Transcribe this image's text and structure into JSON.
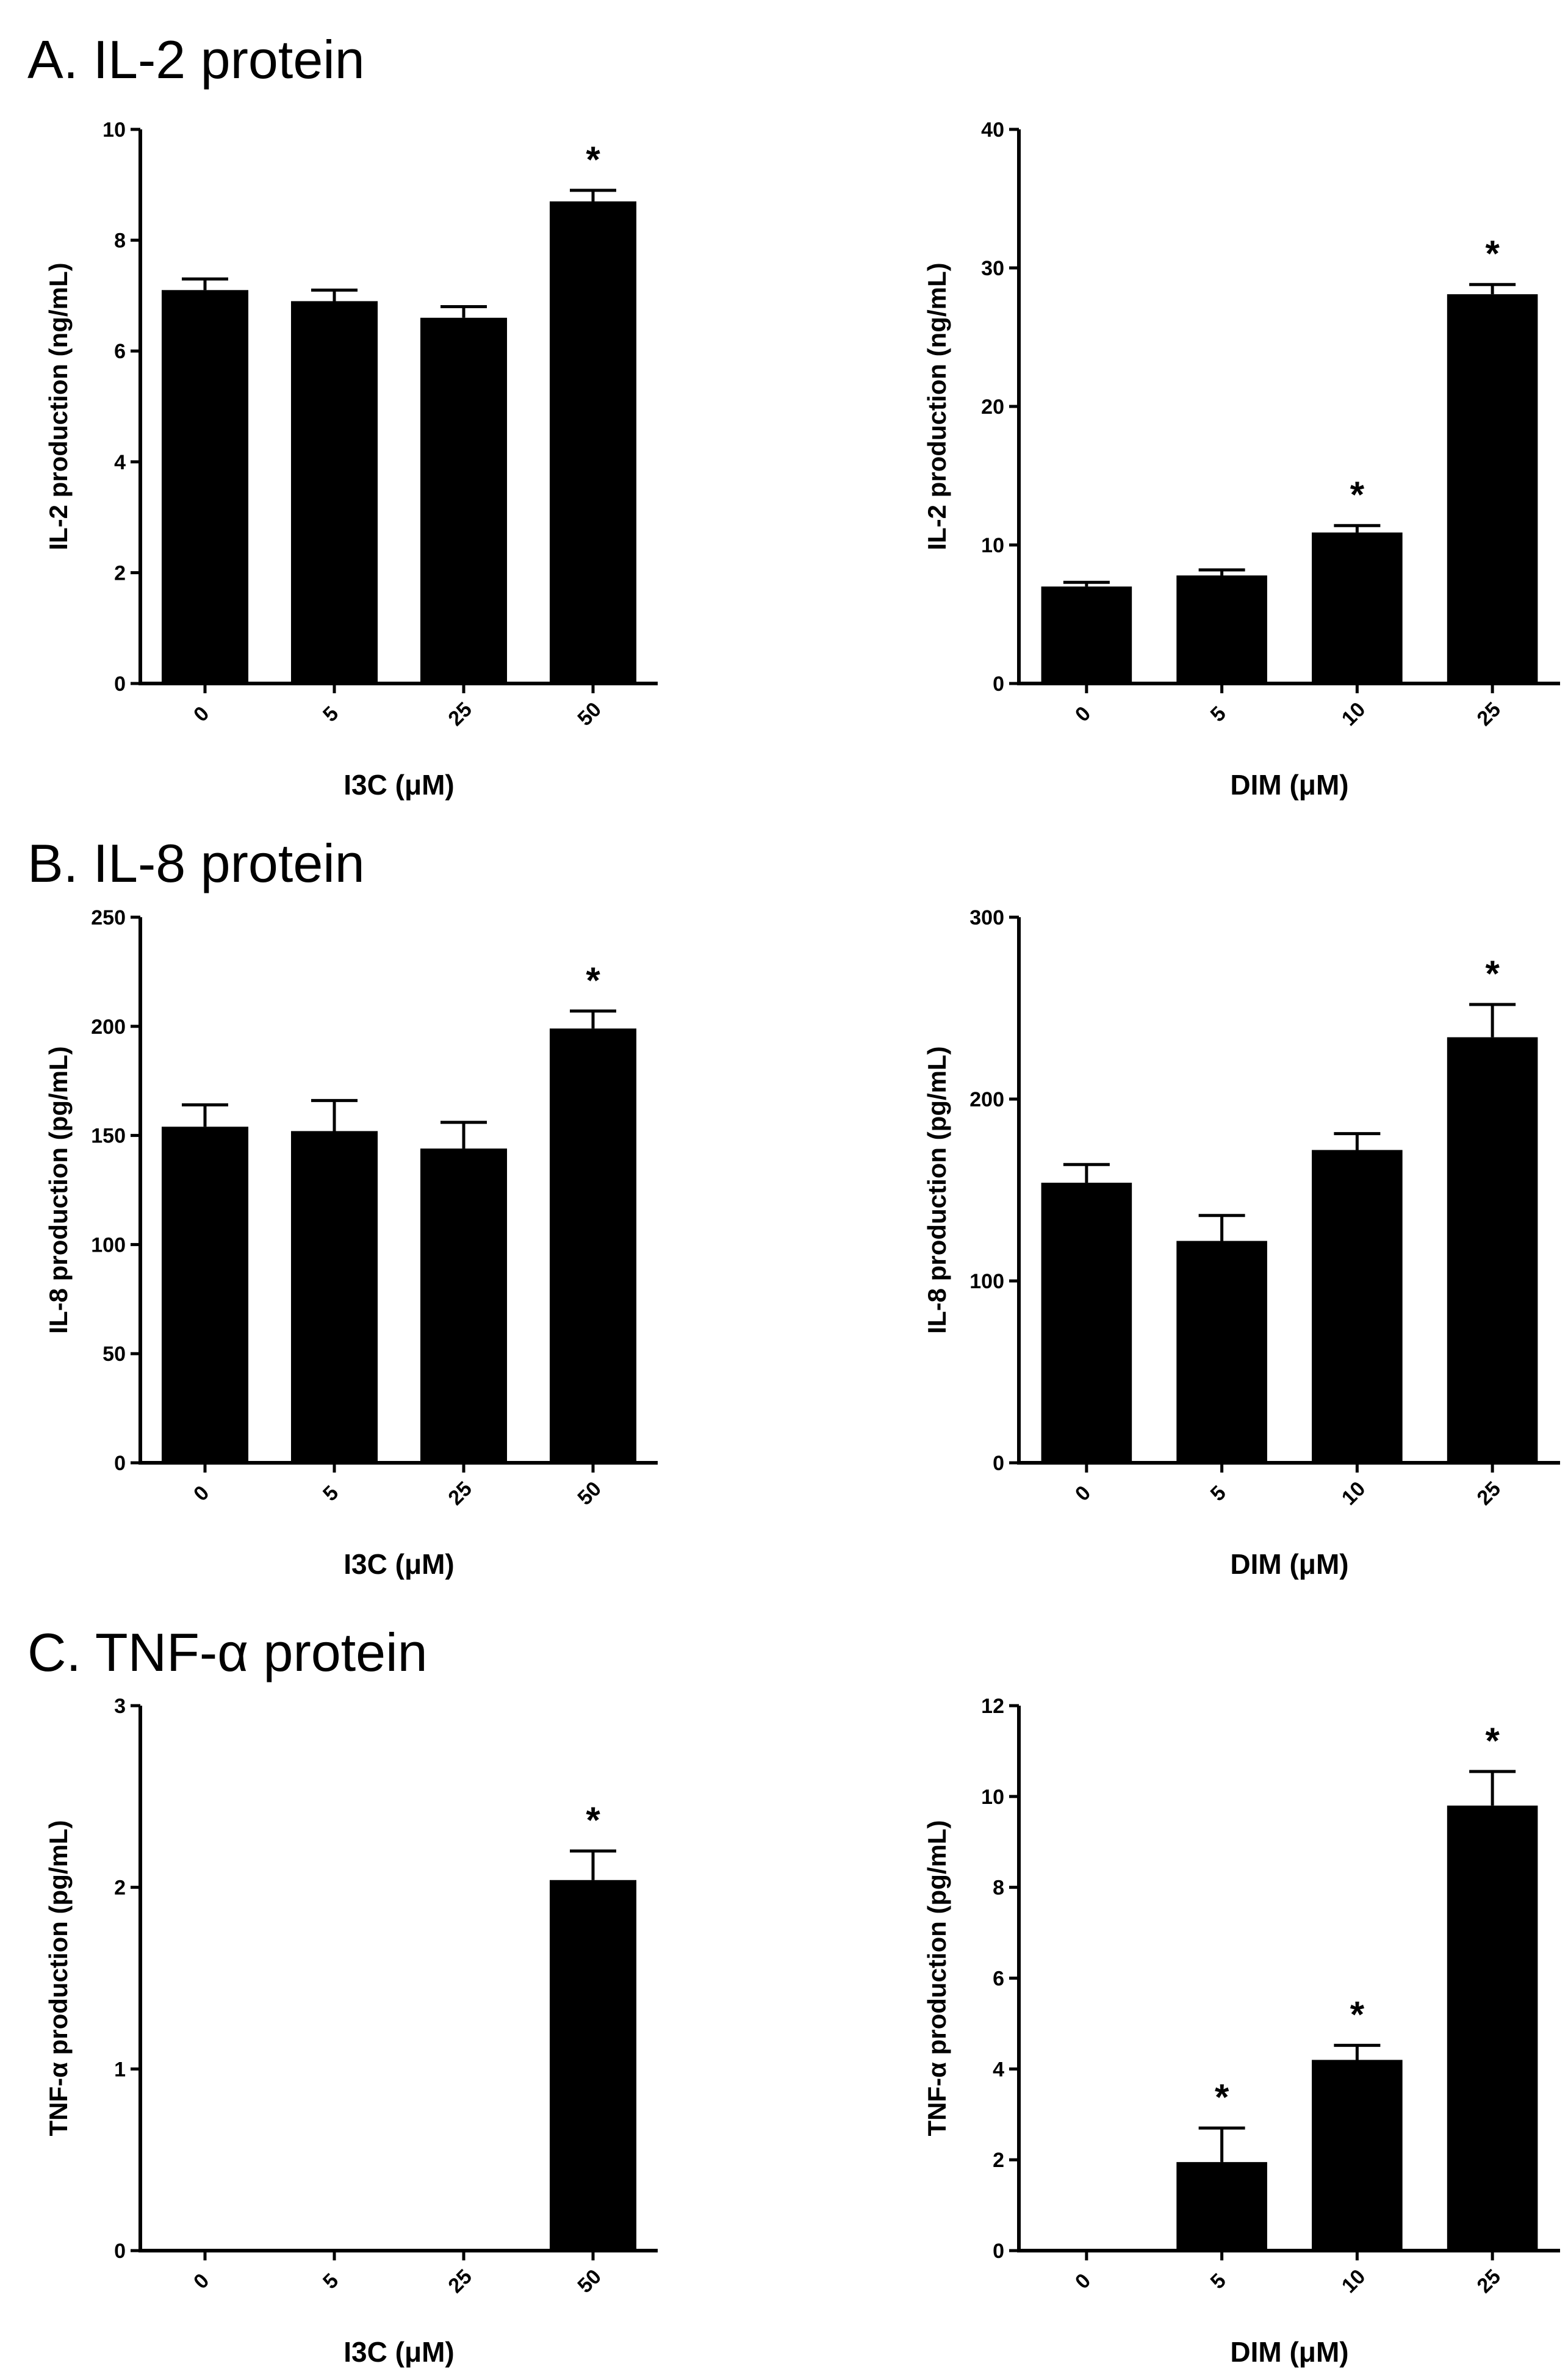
{
  "colors": {
    "bar": "#000000",
    "axis": "#000000",
    "background": "#ffffff"
  },
  "sections": [
    {
      "label": "A. IL-2 protein"
    },
    {
      "label": "B. IL-8 protein"
    },
    {
      "label": "C. TNF-α protein"
    }
  ],
  "chart_data": [
    {
      "type": "bar",
      "panel": "A-left",
      "categories": [
        "0",
        "5",
        "25",
        "50"
      ],
      "values": [
        7.1,
        6.9,
        6.6,
        8.7
      ],
      "errors": [
        0.2,
        0.2,
        0.2,
        0.2
      ],
      "significant": [
        false,
        false,
        false,
        true
      ],
      "marker_text": "*",
      "ylim": [
        0,
        10
      ],
      "yticks": [
        "0",
        "2",
        "4",
        "6",
        "8",
        "10"
      ],
      "ylabel": "IL-2 production (ng/mL)",
      "xlabel": "I3C (μM)",
      "title": "A. IL-2 protein"
    },
    {
      "type": "bar",
      "panel": "A-right",
      "categories": [
        "0",
        "5",
        "10",
        "25"
      ],
      "values": [
        7.0,
        7.8,
        10.9,
        28.1
      ],
      "errors": [
        0.3,
        0.4,
        0.5,
        0.7
      ],
      "significant": [
        false,
        false,
        true,
        true
      ],
      "marker_text": "*",
      "ylim": [
        0,
        40
      ],
      "yticks": [
        "0",
        "10",
        "20",
        "30",
        "40"
      ],
      "ylabel": "IL-2 production (ng/mL)",
      "xlabel": "DIM (μM)"
    },
    {
      "type": "bar",
      "panel": "B-left",
      "categories": [
        "0",
        "5",
        "25",
        "50"
      ],
      "values": [
        154,
        152,
        144,
        199
      ],
      "errors": [
        10,
        14,
        12,
        8
      ],
      "significant": [
        false,
        false,
        false,
        true
      ],
      "marker_text": "*",
      "ylim": [
        0,
        250
      ],
      "yticks": [
        "0",
        "50",
        "100",
        "150",
        "200",
        "250"
      ],
      "ylabel": "IL-8 production (pg/mL)",
      "xlabel": "I3C (μM)",
      "title": "B. IL-8 protein"
    },
    {
      "type": "bar",
      "panel": "B-right",
      "categories": [
        "0",
        "5",
        "10",
        "25"
      ],
      "values": [
        154,
        122,
        172,
        234
      ],
      "errors": [
        10,
        14,
        9,
        18
      ],
      "significant": [
        false,
        false,
        false,
        true
      ],
      "marker_text": "*",
      "ylim": [
        0,
        300
      ],
      "yticks": [
        "0",
        "100",
        "200",
        "300"
      ],
      "ylabel": "IL-8 production (pg/mL)",
      "xlabel": "DIM (μM)"
    },
    {
      "type": "bar",
      "panel": "C-left",
      "categories": [
        "0",
        "5",
        "25",
        "50"
      ],
      "values": [
        0,
        0,
        0,
        2.04
      ],
      "errors": [
        0,
        0,
        0,
        0.16
      ],
      "significant": [
        false,
        false,
        false,
        true
      ],
      "marker_text": "*",
      "ylim": [
        0,
        3
      ],
      "yticks": [
        "0",
        "1",
        "2",
        "3"
      ],
      "ylabel": "TNF-α production (pg/mL)",
      "xlabel": "I3C (μM)",
      "title": "C. TNF-α protein"
    },
    {
      "type": "bar",
      "panel": "C-right",
      "categories": [
        "0",
        "5",
        "10",
        "25"
      ],
      "values": [
        0,
        1.95,
        4.2,
        9.8
      ],
      "errors": [
        0,
        0.75,
        0.32,
        0.75
      ],
      "significant": [
        false,
        true,
        true,
        true
      ],
      "marker_text": "*",
      "ylim": [
        0,
        12
      ],
      "yticks": [
        "0",
        "2",
        "4",
        "6",
        "8",
        "10",
        "12"
      ],
      "ylabel": "TNF-α production (pg/mL)",
      "xlabel": "DIM (μM)"
    }
  ]
}
